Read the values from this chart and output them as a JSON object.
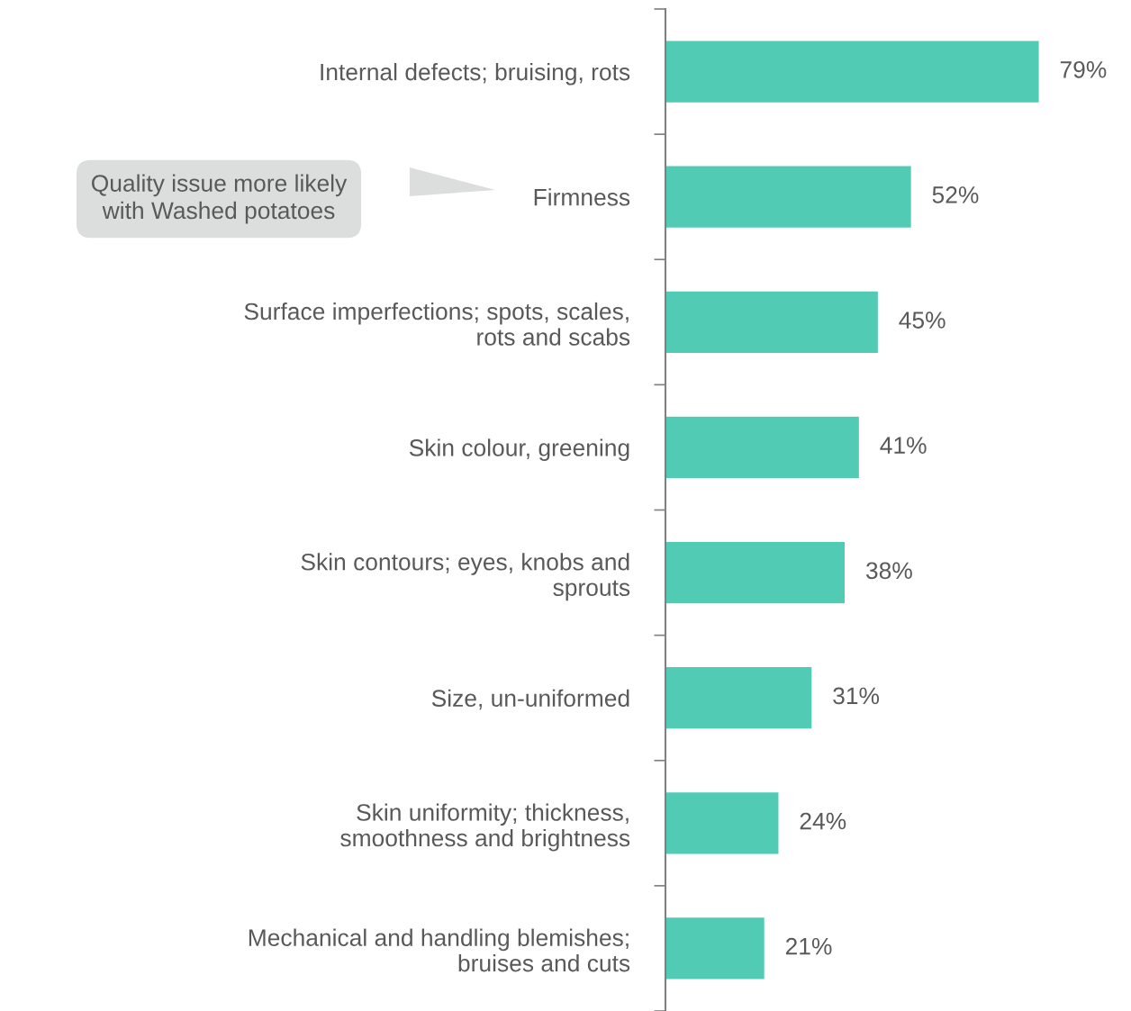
{
  "chart_data": {
    "type": "bar",
    "orientation": "horizontal",
    "categories": [
      "Internal defects; bruising, rots",
      "Firmness",
      "Surface imperfections; spots, scales,\nrots and scabs",
      "Skin colour, greening",
      "Skin contours; eyes, knobs and\nsprouts",
      "Size, un-uniformed",
      "Skin uniformity; thickness,\nsmoothness and brightness",
      "Mechanical and handling blemishes;\nbruises and cuts"
    ],
    "values": [
      79,
      52,
      45,
      41,
      38,
      31,
      24,
      21
    ],
    "value_labels": [
      "79%",
      "52%",
      "45%",
      "41%",
      "38%",
      "31%",
      "24%",
      "21%"
    ],
    "color": "#52cbb5",
    "annotations": [
      "Quality issue more likely\nwith Washed potatoes"
    ],
    "grid": false,
    "legend": false
  }
}
